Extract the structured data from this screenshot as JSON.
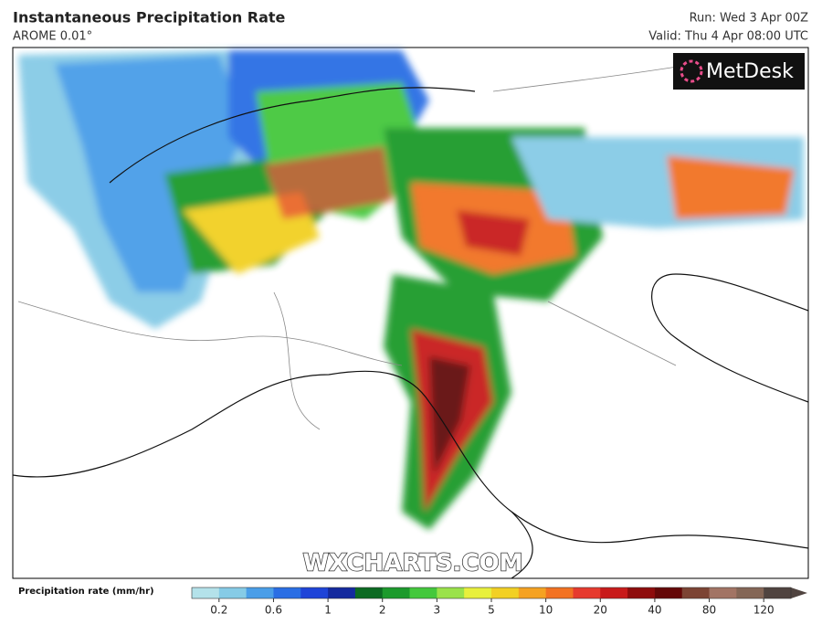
{
  "header": {
    "title": "Instantaneous Precipitation Rate",
    "model": "AROME 0.01°",
    "run": "Run: Wed 3 Apr 00Z",
    "valid": "Valid: Thu 4 Apr 08:00 UTC"
  },
  "logo": "MetDesk",
  "watermark": "WXCHARTS.COM",
  "legend": {
    "label": "Precipitation rate (mm/hr)",
    "ticks": [
      0.2,
      0.6,
      1,
      2,
      3,
      5,
      10,
      20,
      40,
      80,
      120
    ],
    "colors": [
      "#b4e2ea",
      "#86cbe6",
      "#4a9ee8",
      "#2a6ee4",
      "#1e44d8",
      "#142a9e",
      "#0c6a22",
      "#1c9a2c",
      "#44c83c",
      "#9ae24a",
      "#e8f03c",
      "#f2d024",
      "#f5a222",
      "#f27222",
      "#e63a2e",
      "#c81a1a",
      "#8e0c0c",
      "#640808",
      "#7c4434",
      "#a27464",
      "#846656",
      "#504440"
    ]
  }
}
